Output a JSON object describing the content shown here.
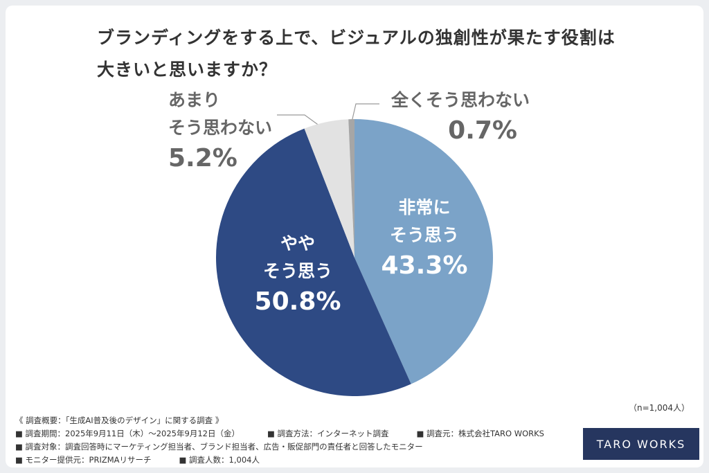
{
  "chart_data": {
    "type": "pie",
    "title": "ブランディングをする上で、ビジュアルの独創性が果たす役割は大きいと思いますか？",
    "categories": [
      "非常に\nそう思う",
      "やや\nそう思う",
      "あまり\nそう思わない",
      "全くそう思わない"
    ],
    "values": [
      43.3,
      50.8,
      5.2,
      0.7
    ],
    "value_labels": [
      "43.3%",
      "50.8%",
      "5.2%",
      "0.7%"
    ],
    "colors": [
      "#7ba3c8",
      "#2e4a84",
      "#e2e2e2",
      "#a6a6a6"
    ],
    "sample_note": "（n=1,004人）"
  },
  "footer": {
    "notes": [
      [
        "《 調査概要：「生成AI普及後のデザイン」に関する調査 》"
      ],
      [
        "■ 調査期間：2025年9月11日（木）～2025年9月12日（金）",
        "■ 調査方法：インターネット調査",
        "■ 調査元：株式会社TARO WORKS"
      ],
      [
        "■ 調査対象：調査回答時にマーケティング担当者、ブランド担当者、広告・販促部門の責任者と回答したモニター"
      ],
      [
        "■ モニター提供元：PRIZMAリサーチ",
        "■ 調査人数：1,004人"
      ]
    ],
    "logo": "TARO WORKS"
  }
}
